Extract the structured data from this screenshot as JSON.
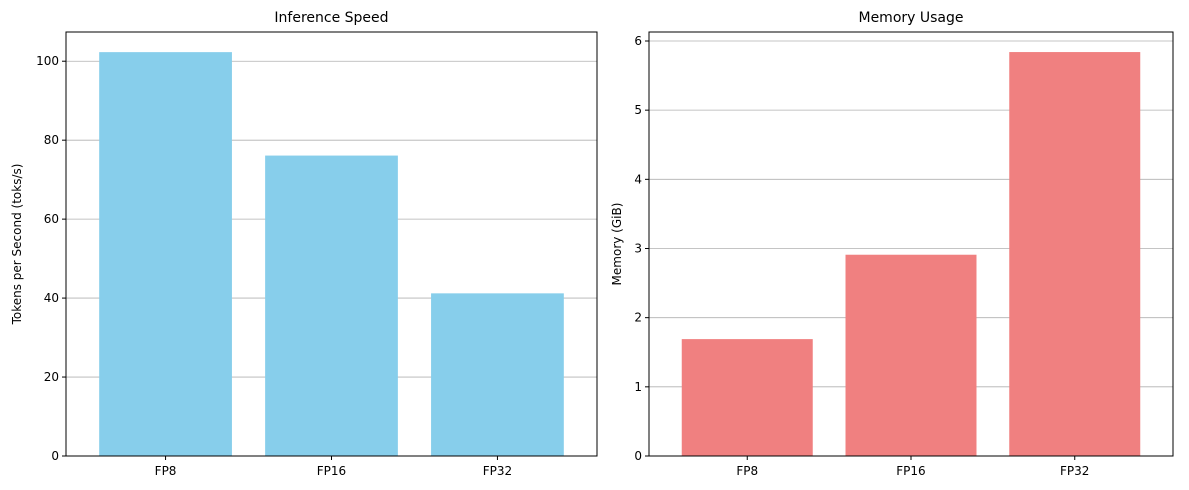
{
  "chart_data": [
    {
      "type": "bar",
      "title": "Inference Speed",
      "xlabel": "",
      "ylabel": "Tokens per Second (toks/s)",
      "categories": [
        "FP8",
        "FP16",
        "FP32"
      ],
      "values": [
        102.3,
        76.1,
        41.2
      ],
      "ylim": [
        0,
        107.4
      ],
      "yticks": [
        0,
        20,
        40,
        60,
        80,
        100
      ],
      "color": "#87CEEB",
      "grid": "y"
    },
    {
      "type": "bar",
      "title": "Memory Usage",
      "xlabel": "",
      "ylabel": "Memory (GiB)",
      "categories": [
        "FP8",
        "FP16",
        "FP32"
      ],
      "values": [
        1.69,
        2.91,
        5.84
      ],
      "ylim": [
        0,
        6.13
      ],
      "yticks": [
        0,
        1,
        2,
        3,
        4,
        5,
        6
      ],
      "color": "#F08080",
      "grid": "y"
    }
  ]
}
